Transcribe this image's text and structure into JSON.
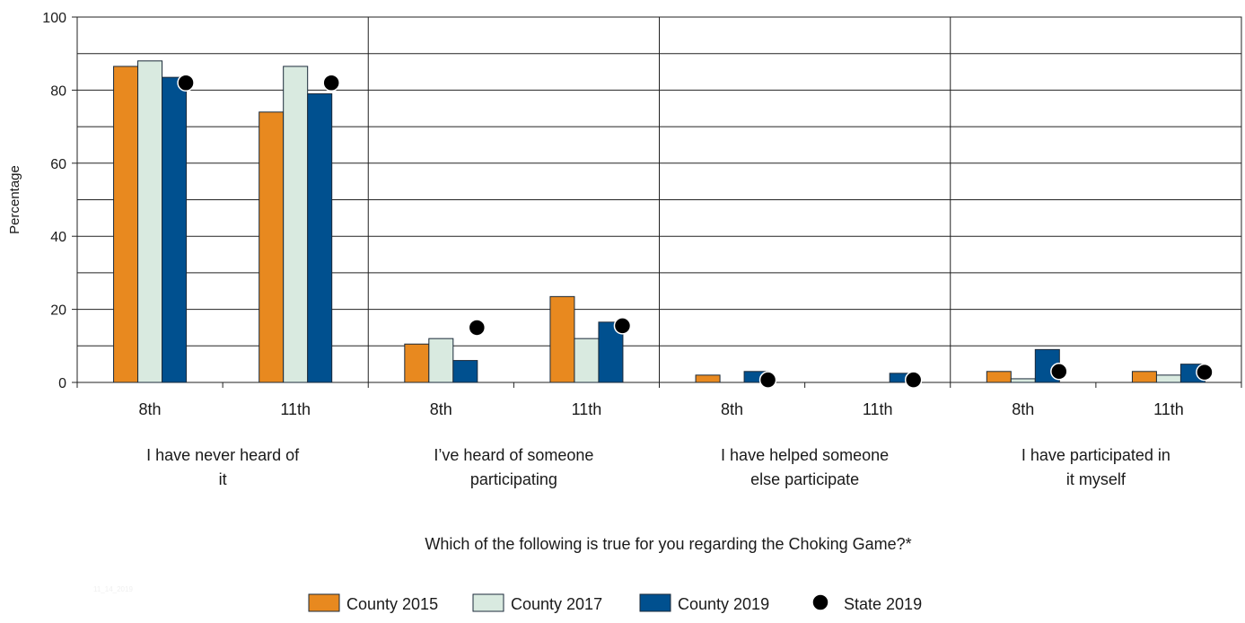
{
  "chart_data": {
    "type": "bar",
    "ylabel": "Percentage",
    "xlabel": "Which of the following is true for you regarding the Choking Game?*",
    "ylim": [
      0,
      100
    ],
    "yticks": [
      0,
      20,
      40,
      60,
      80,
      100
    ],
    "grid": true,
    "legend_position": "bottom-center",
    "watermark": "11_14_2019",
    "groups": [
      {
        "label_lines": [
          "I have never heard of",
          "it"
        ],
        "categories": [
          "8th",
          "11th"
        ]
      },
      {
        "label_lines": [
          "I’ve heard of someone",
          "participating"
        ],
        "categories": [
          "8th",
          "11th"
        ]
      },
      {
        "label_lines": [
          "I have helped someone",
          "else participate"
        ],
        "categories": [
          "8th",
          "11th"
        ]
      },
      {
        "label_lines": [
          "I have participated in",
          "it myself"
        ],
        "categories": [
          "8th",
          "11th"
        ]
      }
    ],
    "series": [
      {
        "name": "County 2015",
        "kind": "bar",
        "color": "#E8891F",
        "values": [
          86.5,
          74,
          10.5,
          23.5,
          2,
          null,
          3,
          3
        ]
      },
      {
        "name": "County 2017",
        "kind": "bar",
        "color": "#D9EAE0",
        "values": [
          88,
          86.5,
          12,
          12,
          null,
          null,
          1,
          2
        ]
      },
      {
        "name": "County 2019",
        "kind": "bar",
        "color": "#00508F",
        "values": [
          83.5,
          79,
          6,
          16.5,
          3,
          2.5,
          9,
          5
        ]
      },
      {
        "name": "State 2019",
        "kind": "marker",
        "color": "#000000",
        "values": [
          82,
          82,
          15,
          15.5,
          0.7,
          0.7,
          3,
          2.8
        ]
      }
    ]
  }
}
